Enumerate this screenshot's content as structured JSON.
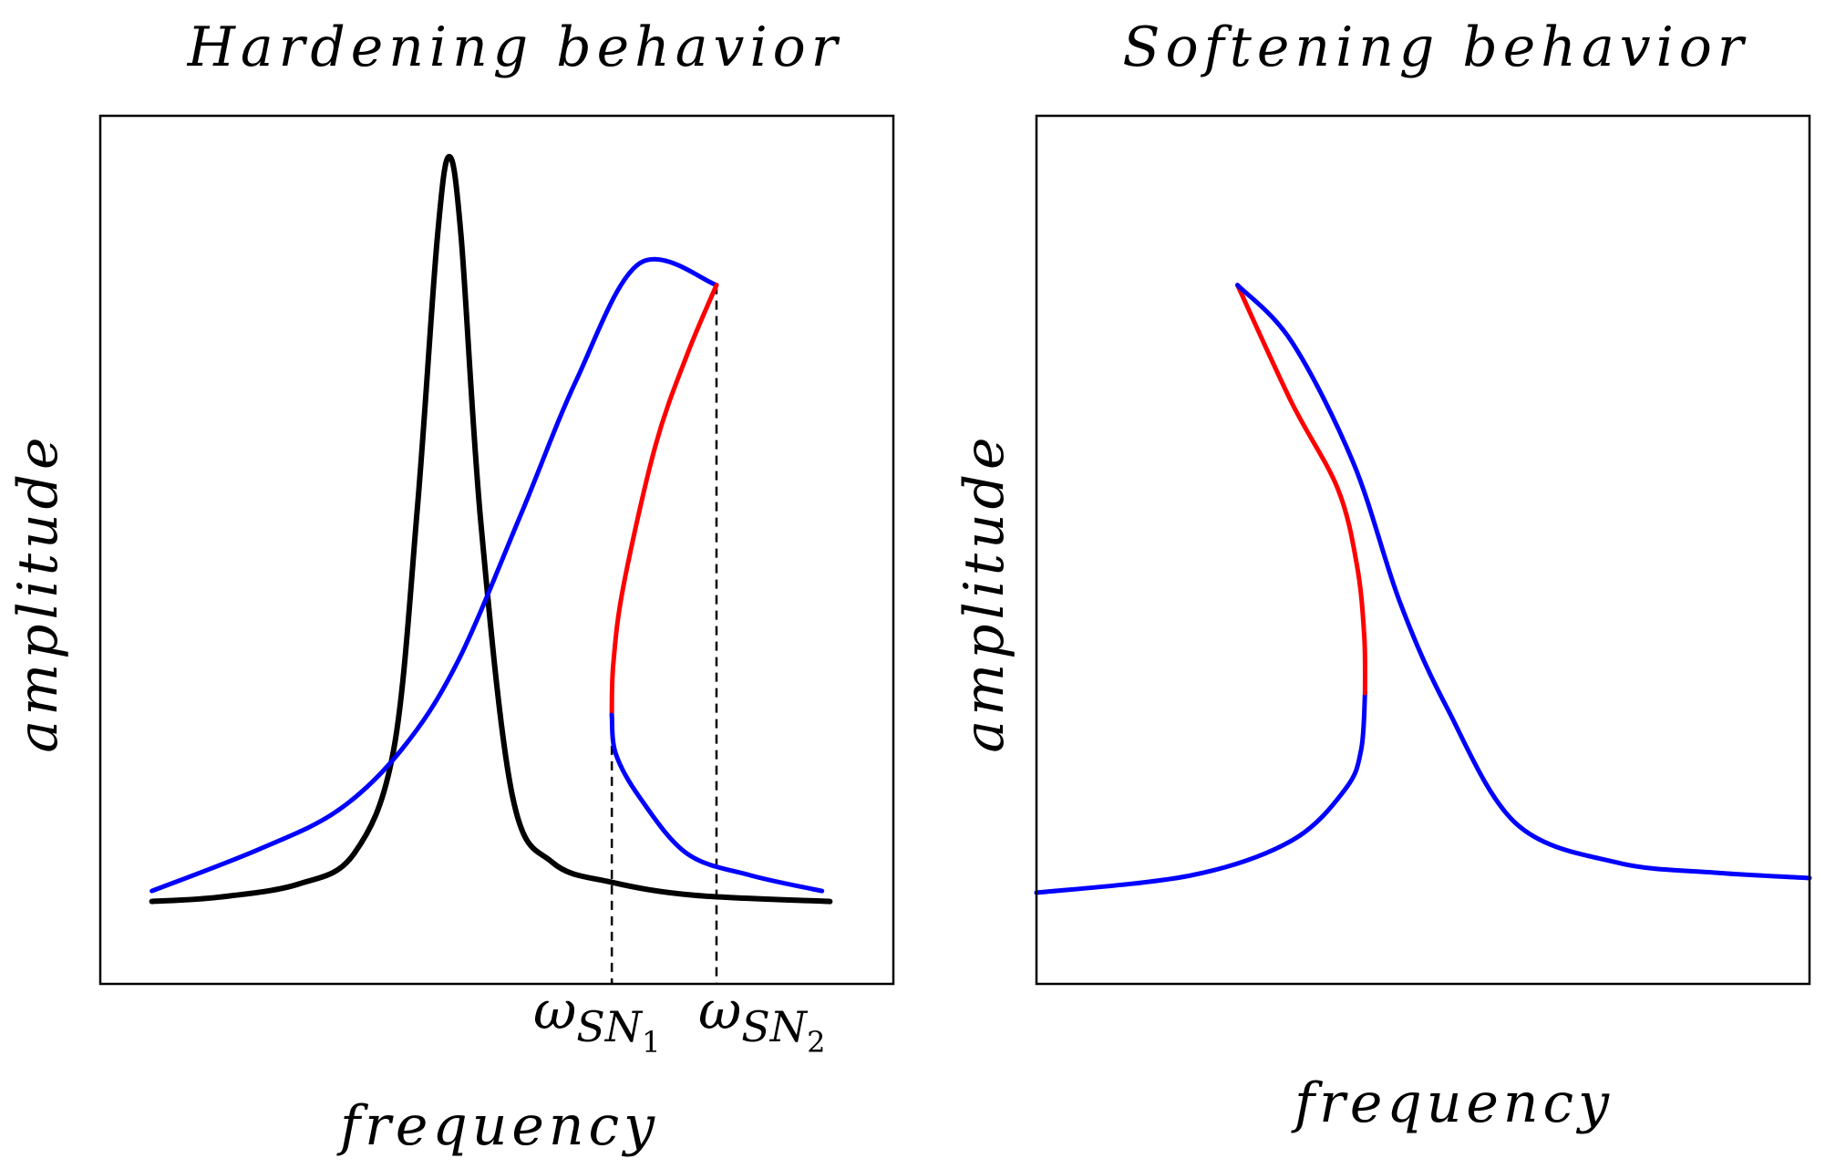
{
  "colors": {
    "linear_response": "#000000",
    "stable_branch": "#0000ff",
    "unstable_branch": "#ff0000",
    "frame": "#000000"
  },
  "chart_data": [
    {
      "type": "line",
      "title": "Hardening behavior",
      "xlabel": "frequency",
      "ylabel": "amplitude",
      "xlim": [
        0,
        1
      ],
      "ylim": [
        0,
        1
      ],
      "grid": false,
      "legend": "none",
      "ticks": false,
      "annotations": [
        {
          "symbol": "ω",
          "sub": "SN",
          "subsub": "1",
          "x": 0.645
        },
        {
          "symbol": "ω",
          "sub": "SN",
          "subsub": "2",
          "x": 0.777
        }
      ],
      "series": [
        {
          "role": "linear_response",
          "color": "#000000",
          "points": [
            [
              0.065,
              0.095
            ],
            [
              0.15,
              0.1
            ],
            [
              0.25,
              0.115
            ],
            [
              0.32,
              0.15
            ],
            [
              0.37,
              0.27
            ],
            [
              0.4,
              0.55
            ],
            [
              0.425,
              0.86
            ],
            [
              0.44,
              0.953
            ],
            [
              0.455,
              0.86
            ],
            [
              0.48,
              0.53
            ],
            [
              0.52,
              0.215
            ],
            [
              0.57,
              0.14
            ],
            [
              0.645,
              0.117
            ],
            [
              0.75,
              0.102
            ],
            [
              0.92,
              0.095
            ]
          ]
        },
        {
          "role": "stable_branch",
          "color": "#0000ff",
          "points": [
            [
              0.065,
              0.107
            ],
            [
              0.2,
              0.155
            ],
            [
              0.3,
              0.2
            ],
            [
              0.38,
              0.27
            ],
            [
              0.45,
              0.37
            ],
            [
              0.53,
              0.54
            ],
            [
              0.6,
              0.695
            ],
            [
              0.68,
              0.83
            ],
            [
              0.777,
              0.805
            ]
          ]
        },
        {
          "role": "unstable_branch",
          "color": "#ff0000",
          "points": [
            [
              0.645,
              0.31
            ],
            [
              0.647,
              0.37
            ],
            [
              0.66,
              0.46
            ],
            [
              0.7,
              0.62
            ],
            [
              0.74,
              0.725
            ],
            [
              0.777,
              0.805
            ]
          ]
        },
        {
          "role": "stable_branch",
          "color": "#0000ff",
          "points": [
            [
              0.645,
              0.31
            ],
            [
              0.65,
              0.265
            ],
            [
              0.68,
              0.215
            ],
            [
              0.74,
              0.15
            ],
            [
              0.82,
              0.125
            ],
            [
              0.91,
              0.107
            ]
          ]
        }
      ]
    },
    {
      "type": "line",
      "title": "Softening behavior",
      "xlabel": "frequency",
      "ylabel": "amplitude",
      "xlim": [
        0,
        1
      ],
      "ylim": [
        0,
        1
      ],
      "grid": false,
      "legend": "none",
      "ticks": false,
      "series": [
        {
          "role": "stable_branch",
          "color": "#0000ff",
          "points": [
            [
              0.0,
              0.105
            ],
            [
              0.2,
              0.125
            ],
            [
              0.33,
              0.165
            ],
            [
              0.4,
              0.225
            ],
            [
              0.42,
              0.27
            ],
            [
              0.425,
              0.335
            ]
          ]
        },
        {
          "role": "unstable_branch",
          "color": "#ff0000",
          "points": [
            [
              0.425,
              0.335
            ],
            [
              0.424,
              0.4
            ],
            [
              0.415,
              0.48
            ],
            [
              0.39,
              0.57
            ],
            [
              0.33,
              0.67
            ],
            [
              0.26,
              0.805
            ]
          ]
        },
        {
          "role": "stable_branch",
          "color": "#0000ff",
          "points": [
            [
              0.26,
              0.805
            ],
            [
              0.33,
              0.74
            ],
            [
              0.41,
              0.6
            ],
            [
              0.47,
              0.44
            ],
            [
              0.53,
              0.32
            ],
            [
              0.62,
              0.185
            ],
            [
              0.75,
              0.14
            ],
            [
              0.88,
              0.128
            ],
            [
              1.0,
              0.122
            ]
          ]
        }
      ]
    }
  ]
}
